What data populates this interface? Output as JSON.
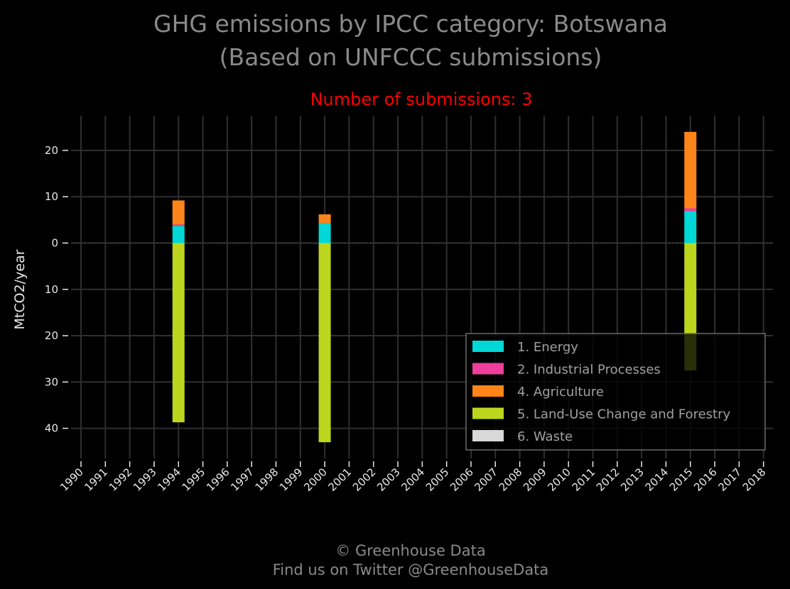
{
  "title_line1": "GHG emissions by IPCC category: Botswana",
  "title_line2": "(Based on UNFCCC submissions)",
  "subtitle": "Number of submissions: 3",
  "footer_line1": "© Greenhouse Data",
  "footer_line2": "Find us on Twitter @GreenhouseData",
  "chart_data": {
    "type": "bar",
    "stacked": true,
    "title": "GHG emissions by IPCC category: Botswana",
    "subtitle": "Number of submissions: 3",
    "xlabel": "",
    "ylabel": "MtCO2/year",
    "x_ticks": [
      "1990",
      "1991",
      "1992",
      "1993",
      "1994",
      "1995",
      "1996",
      "1997",
      "1998",
      "1999",
      "2000",
      "2001",
      "2002",
      "2003",
      "2004",
      "2005",
      "2006",
      "2007",
      "2008",
      "2009",
      "2010",
      "2011",
      "2012",
      "2013",
      "2014",
      "2015",
      "2016",
      "2017",
      "2018"
    ],
    "y_ticks": [
      20,
      10,
      0,
      -10,
      -20,
      -30,
      -40
    ],
    "y_tick_labels": [
      "20",
      "10",
      "0",
      "​10",
      "​20",
      "​30",
      "​40"
    ],
    "ylim": [
      -46.5,
      27.5
    ],
    "xlim": [
      1989.5,
      2018.5
    ],
    "grid": true,
    "legend_position": "lower-right",
    "categories": [
      "1994",
      "2000",
      "2015"
    ],
    "series": [
      {
        "name": "1. Energy",
        "color": "#00d7d7",
        "values": [
          3.7,
          4.3,
          6.9
        ]
      },
      {
        "name": "2. Industrial Processes",
        "color": "#ee3f9c",
        "values": [
          0.3,
          0.0,
          0.6
        ]
      },
      {
        "name": "4. Agriculture",
        "color": "#ff8419",
        "values": [
          5.2,
          1.9,
          16.5
        ]
      },
      {
        "name": "5. Land-Use Change and Forestry",
        "color": "#bcd61e",
        "values": [
          -38.7,
          -43.0,
          -27.5
        ]
      },
      {
        "name": "6. Waste",
        "color": "#d9d9d9",
        "values": [
          0.0,
          0.0,
          0.0
        ]
      }
    ]
  }
}
